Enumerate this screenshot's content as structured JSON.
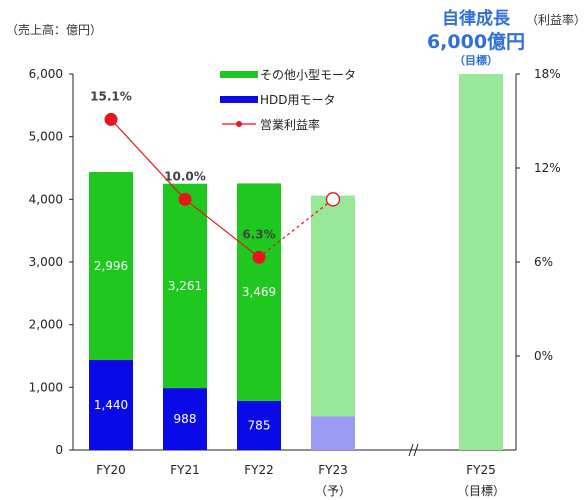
{
  "unit_label": "（売上高：億円）",
  "right_unit_label": "（利益率）",
  "headline": {
    "line1": "自律成長",
    "line2": "6,000億円",
    "line3": "（目標）"
  },
  "colors": {
    "other_motors": "#1ec81e",
    "other_motors_light": "#98e898",
    "hdd_motors": "#0a0ae6",
    "hdd_motors_light": "#9a9af2",
    "margin": "#e8141e",
    "headline": "#2f6fd6"
  },
  "chart_data": {
    "type": "bar",
    "stacked": true,
    "categories": [
      "FY20",
      "FY21",
      "FY22",
      "FY23",
      "FY25"
    ],
    "category_sublabels": [
      "",
      "",
      "",
      "（予）",
      "（目標）"
    ],
    "series": [
      {
        "name": "HDD用モータ",
        "values": [
          1440,
          988,
          785,
          540,
          0
        ],
        "labels": [
          "1,440",
          "988",
          "785",
          "",
          ""
        ]
      },
      {
        "name": "その他小型モータ",
        "values": [
          2996,
          3261,
          3469,
          3520,
          6000
        ],
        "labels": [
          "2,996",
          "3,261",
          "3,469",
          "",
          ""
        ]
      }
    ],
    "line_series": {
      "name": "営業利益率",
      "axis": "right",
      "values": [
        15.1,
        10.0,
        6.3,
        10.0
      ],
      "labels": [
        "15.1%",
        "10.0%",
        "6.3%",
        ""
      ],
      "last_is_forecast": true
    },
    "ylim": [
      0,
      6000
    ],
    "yticks": [
      0,
      1000,
      2000,
      3000,
      4000,
      5000,
      6000
    ],
    "ytick_labels": [
      "0",
      "1,000",
      "2,000",
      "3,000",
      "4,000",
      "5,000",
      "6,000"
    ],
    "y2lim": [
      -6,
      18
    ],
    "y2ticks": [
      0,
      6,
      12,
      18
    ],
    "y2tick_labels": [
      "0%",
      "6%",
      "12%",
      "18%"
    ],
    "axis_break_after": "FY23",
    "legend_position": "top-center",
    "grid": false
  }
}
